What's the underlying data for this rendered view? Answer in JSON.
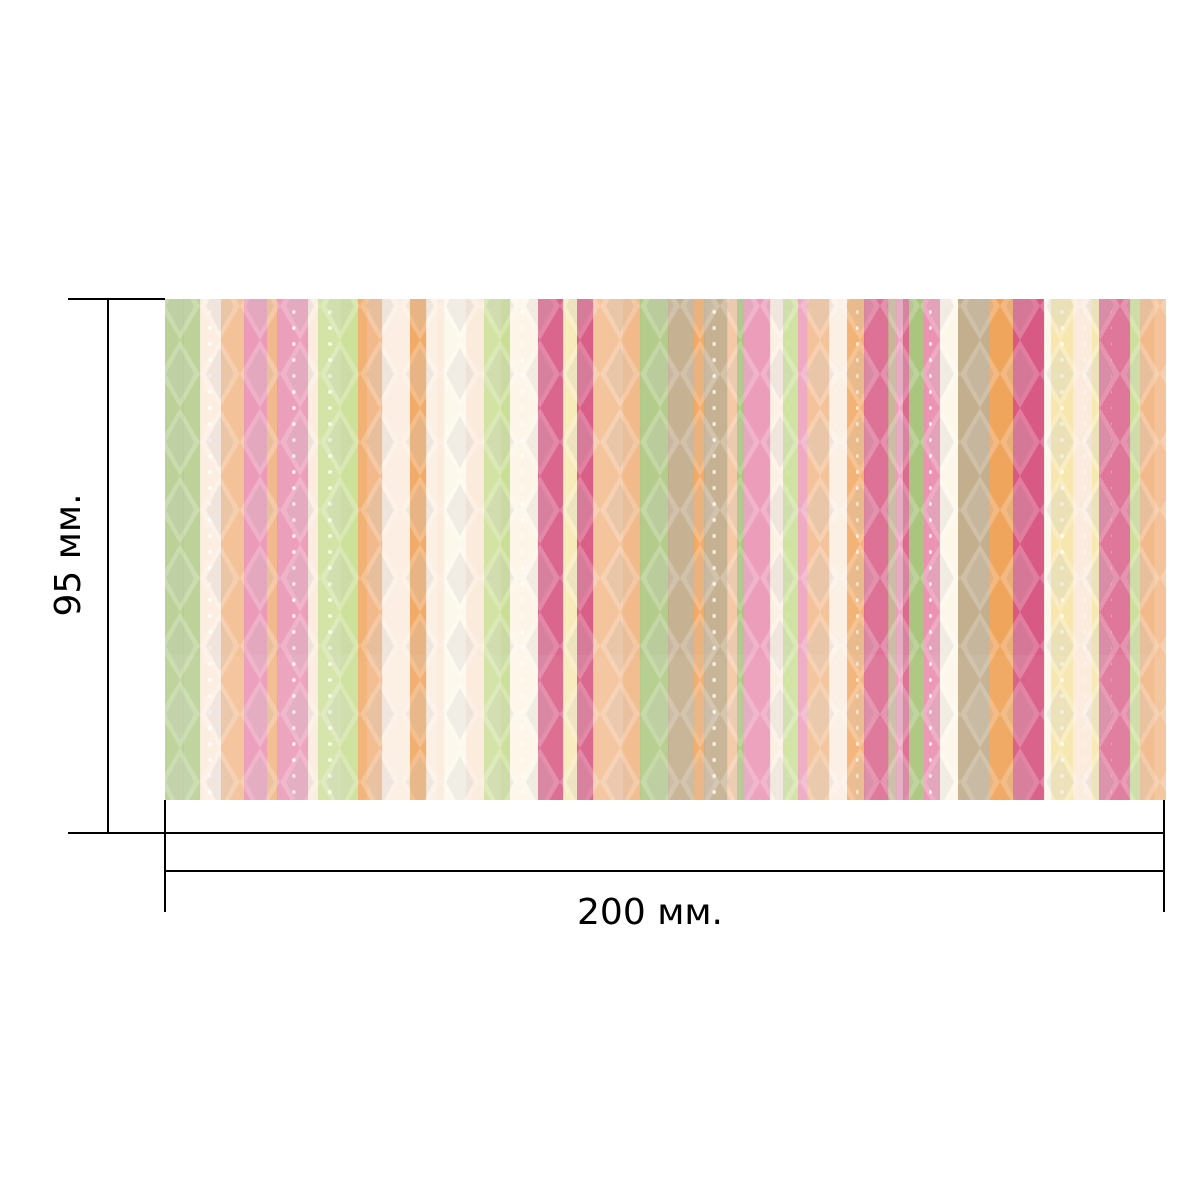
{
  "dimensions": {
    "width_label": "200 мм.",
    "height_label": "95 мм."
  },
  "swatch": {
    "pattern": "vertical-stripes-with-diamonds-and-dots",
    "colors": [
      "#f2b98a",
      "#e98fb0",
      "#c7dd8e",
      "#f6e6a9",
      "#fbeadb",
      "#a8c47a",
      "#d6537f",
      "#f0a35a",
      "#b9a07a",
      "#fdf6e8"
    ]
  },
  "colors": {
    "line": "#000000",
    "background": "#ffffff"
  }
}
